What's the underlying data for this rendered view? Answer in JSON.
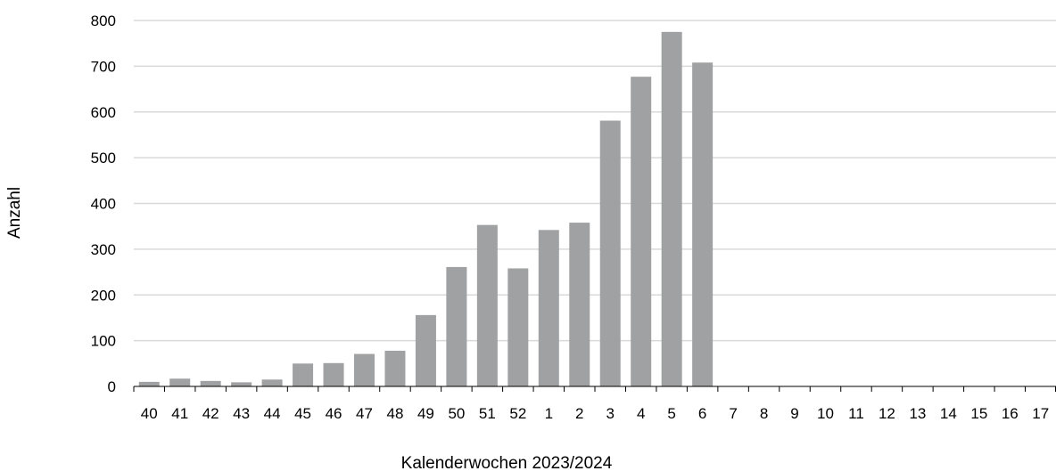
{
  "chart_data": {
    "type": "bar",
    "title": "",
    "xlabel": "Kalenderwochen 2023/2024",
    "ylabel": "Anzahl",
    "ylim": [
      0,
      800
    ],
    "yticks": [
      "0",
      "100",
      "200",
      "300",
      "400",
      "500",
      "600",
      "700",
      "800"
    ],
    "grid": true,
    "bar_color": "#a0a1a3",
    "grid_color": "#d9d9d9",
    "categories": [
      "40",
      "41",
      "42",
      "43",
      "44",
      "45",
      "46",
      "47",
      "48",
      "49",
      "50",
      "51",
      "52",
      "1",
      "2",
      "3",
      "4",
      "5",
      "6",
      "7",
      "8",
      "9",
      "10",
      "11",
      "12",
      "13",
      "14",
      "15",
      "16",
      "17"
    ],
    "values": [
      10,
      17,
      12,
      9,
      15,
      50,
      51,
      71,
      78,
      156,
      261,
      353,
      258,
      342,
      358,
      581,
      677,
      775,
      708,
      null,
      null,
      null,
      null,
      null,
      null,
      null,
      null,
      null,
      null,
      null
    ]
  }
}
